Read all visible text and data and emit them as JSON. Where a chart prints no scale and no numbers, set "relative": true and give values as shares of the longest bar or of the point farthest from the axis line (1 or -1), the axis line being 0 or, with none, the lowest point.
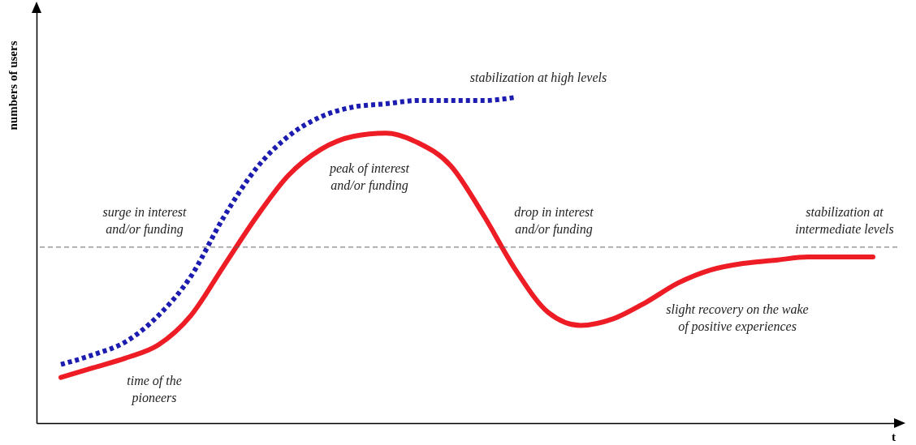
{
  "chart_data": {
    "type": "line",
    "relative": true,
    "ylabel": "numbers of users",
    "xlabel": "t",
    "categories": [
      null,
      null,
      null,
      null,
      null,
      null,
      null,
      null,
      null,
      null,
      null,
      null,
      null,
      null,
      null,
      null,
      null,
      null,
      null,
      null,
      null,
      null,
      null,
      null,
      null,
      null
    ],
    "series": [
      {
        "color": "#1c1cb0",
        "line_style": "dotted",
        "values": [
          0.18,
          0.21,
          0.25,
          0.33,
          0.45,
          0.63,
          0.78,
          0.88,
          0.94,
          0.97,
          0.98,
          0.99,
          0.99,
          0.99,
          1.0,
          null,
          null,
          null,
          null,
          null,
          null,
          null,
          null,
          null,
          null,
          null
        ]
      },
      {
        "color": "#ee1c25",
        "line_style": "solid",
        "values": [
          0.14,
          0.17,
          0.2,
          0.24,
          0.33,
          0.48,
          0.63,
          0.76,
          0.84,
          0.88,
          0.89,
          0.86,
          0.79,
          0.64,
          0.47,
          0.34,
          0.3,
          0.32,
          0.37,
          0.43,
          0.47,
          0.49,
          0.5,
          0.51,
          0.51,
          0.51
        ]
      }
    ],
    "ref_lines": [
      {
        "axis": "y",
        "value": 0.54,
        "color": "#666666",
        "line_style": "dashed"
      }
    ],
    "annotations": [
      "stabilization at high levels",
      "peak of interest\nand/or funding",
      "surge in interest\nand/or funding",
      "drop in interest\nand/or funding",
      "stabilization at\nintermediate levels",
      "slight recovery on the wake\nof positive experiences",
      "time of the\npioneers"
    ]
  }
}
